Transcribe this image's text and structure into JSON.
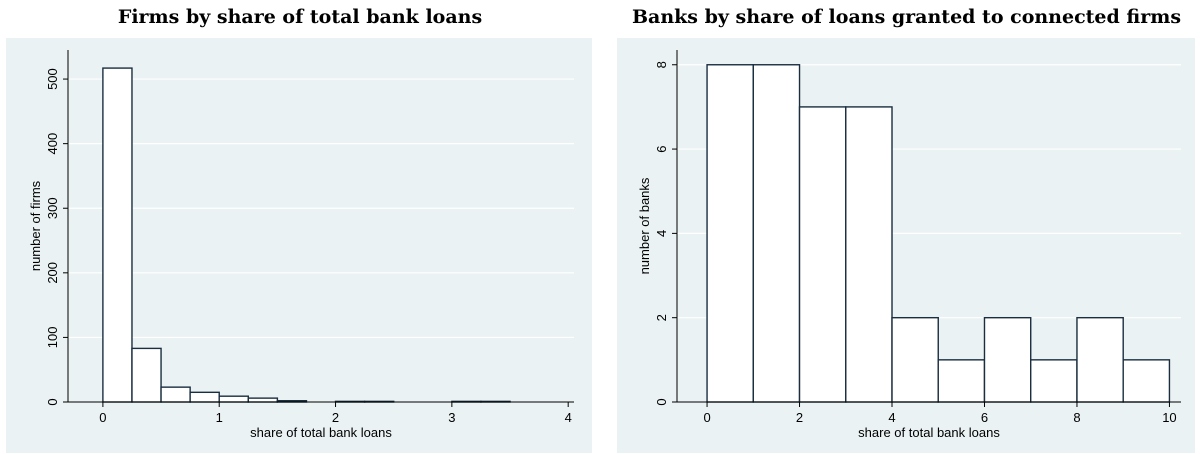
{
  "chart_data": [
    {
      "type": "bar",
      "title": "Firms by share of total bank loans",
      "xlabel": "share of total bank loans",
      "ylabel": "number of firms",
      "xlim": [
        -0.3,
        4.05
      ],
      "ylim": [
        0,
        545
      ],
      "xticks": [
        0,
        1,
        2,
        3,
        4
      ],
      "yticks": [
        0,
        100,
        200,
        300,
        400,
        500
      ],
      "bin_width": 0.25,
      "bins": [
        {
          "x0": 0.0,
          "x1": 0.25,
          "value": 517
        },
        {
          "x0": 0.25,
          "x1": 0.5,
          "value": 83
        },
        {
          "x0": 0.5,
          "x1": 0.75,
          "value": 23
        },
        {
          "x0": 0.75,
          "x1": 1.0,
          "value": 15
        },
        {
          "x0": 1.0,
          "x1": 1.25,
          "value": 9
        },
        {
          "x0": 1.25,
          "x1": 1.5,
          "value": 6
        },
        {
          "x0": 1.5,
          "x1": 1.75,
          "value": 2
        },
        {
          "x0": 1.75,
          "x1": 2.0,
          "value": 0
        },
        {
          "x0": 2.0,
          "x1": 2.25,
          "value": 1
        },
        {
          "x0": 2.25,
          "x1": 2.5,
          "value": 1
        },
        {
          "x0": 2.5,
          "x1": 2.75,
          "value": 0
        },
        {
          "x0": 2.75,
          "x1": 3.0,
          "value": 0
        },
        {
          "x0": 3.0,
          "x1": 3.25,
          "value": 1
        },
        {
          "x0": 3.25,
          "x1": 3.5,
          "value": 1
        },
        {
          "x0": 3.5,
          "x1": 3.75,
          "value": 0
        },
        {
          "x0": 3.75,
          "x1": 4.0,
          "value": 0
        }
      ],
      "grid": true,
      "plot_background": "#eaf2f3",
      "bar_fill": "#ffffff",
      "bar_stroke": "#1a2e40"
    },
    {
      "type": "bar",
      "title": "Banks by share of loans granted to connected firms",
      "xlabel": "share of total bank loans",
      "ylabel": "number of banks",
      "xlim": [
        -0.65,
        10.25
      ],
      "ylim": [
        0,
        8.35
      ],
      "xticks": [
        0,
        2,
        4,
        6,
        8,
        10
      ],
      "yticks": [
        0,
        2,
        4,
        6,
        8
      ],
      "bin_width": 1,
      "bins": [
        {
          "x0": 0,
          "x1": 1,
          "value": 8
        },
        {
          "x0": 1,
          "x1": 2,
          "value": 8
        },
        {
          "x0": 2,
          "x1": 3,
          "value": 7
        },
        {
          "x0": 3,
          "x1": 4,
          "value": 7
        },
        {
          "x0": 4,
          "x1": 5,
          "value": 2
        },
        {
          "x0": 5,
          "x1": 6,
          "value": 1
        },
        {
          "x0": 6,
          "x1": 7,
          "value": 2
        },
        {
          "x0": 7,
          "x1": 8,
          "value": 1
        },
        {
          "x0": 8,
          "x1": 9,
          "value": 2
        },
        {
          "x0": 9,
          "x1": 10,
          "value": 1
        }
      ],
      "grid": true,
      "plot_background": "#eaf2f3",
      "bar_fill": "#ffffff",
      "bar_stroke": "#1a2e40"
    }
  ]
}
